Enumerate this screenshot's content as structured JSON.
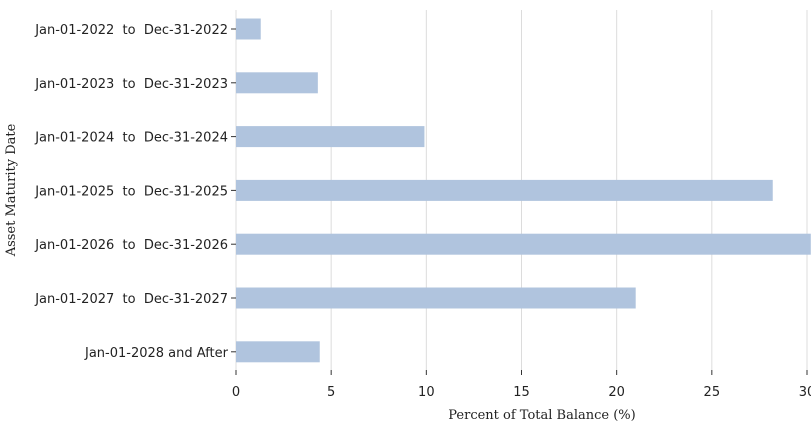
{
  "chart_data": {
    "type": "bar",
    "orientation": "horizontal",
    "title": "",
    "xlabel": "Percent of Total Balance (%)",
    "ylabel": "Asset Maturity Date",
    "categories": [
      "Jan-01-2022  to  Dec-31-2022",
      "Jan-01-2023  to  Dec-31-2023",
      "Jan-01-2024  to  Dec-31-2024",
      "Jan-01-2025  to  Dec-31-2025",
      "Jan-01-2026  to  Dec-31-2026",
      "Jan-01-2027  to  Dec-31-2027",
      "Jan-01-2028 and After"
    ],
    "values": [
      1.3,
      4.3,
      9.9,
      28.2,
      30.2,
      21.0,
      4.4
    ],
    "xlim": [
      0,
      30
    ],
    "xticks": [
      "0",
      "5",
      "10",
      "15",
      "20",
      "25",
      "30"
    ],
    "grid": "vertical",
    "bar_color": "#b0c4de"
  }
}
